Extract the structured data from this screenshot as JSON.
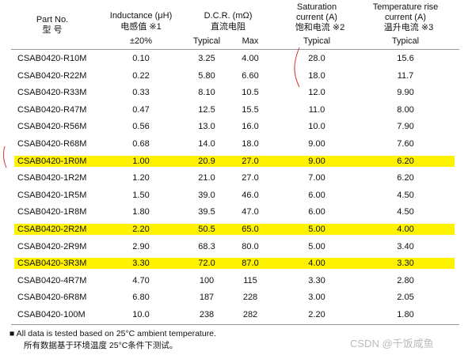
{
  "header": {
    "part_no": [
      "Part No.",
      "型 号"
    ],
    "inductance": [
      "Inductance (μH)",
      "电感值 ※1",
      "±20%"
    ],
    "dcr": [
      "D.C.R. (mΩ)",
      "直流电阻"
    ],
    "saturation": [
      "Saturation",
      "current (A)",
      "饱和电流 ※2"
    ],
    "temp_rise": [
      "Temperature rise",
      "current (A)",
      "温升电流 ※3"
    ],
    "subheaders": [
      "Typical",
      "Max",
      "Typical",
      "Typical"
    ]
  },
  "table": {
    "rows": [
      {
        "cells": [
          "CSAB0420-R10M",
          "0.10",
          "3.25",
          "4.00",
          "28.0",
          "15.6"
        ]
      },
      {
        "cells": [
          "CSAB0420-R22M",
          "0.22",
          "5.80",
          "6.60",
          "18.0",
          "11.7"
        ]
      },
      {
        "cells": [
          "CSAB0420-R33M",
          "0.33",
          "8.10",
          "10.5",
          "12.0",
          "9.90"
        ]
      },
      {
        "cells": [
          "CSAB0420-R47M",
          "0.47",
          "12.5",
          "15.5",
          "11.0",
          "8.00"
        ]
      },
      {
        "cells": [
          "CSAB0420-R56M",
          "0.56",
          "13.0",
          "16.0",
          "10.0",
          "7.90"
        ]
      },
      {
        "cells": [
          "CSAB0420-R68M",
          "0.68",
          "14.0",
          "18.0",
          "9.00",
          "7.60"
        ]
      },
      {
        "cells": [
          "CSAB0420-1R0M",
          "1.00",
          "20.9",
          "27.0",
          "9.00",
          "6.20"
        ],
        "highlight": true
      },
      {
        "cells": [
          "CSAB0420-1R2M",
          "1.20",
          "21.0",
          "27.0",
          "7.00",
          "6.20"
        ]
      },
      {
        "cells": [
          "CSAB0420-1R5M",
          "1.50",
          "39.0",
          "46.0",
          "6.00",
          "4.50"
        ]
      },
      {
        "cells": [
          "CSAB0420-1R8M",
          "1.80",
          "39.5",
          "47.0",
          "6.00",
          "4.50"
        ]
      },
      {
        "cells": [
          "CSAB0420-2R2M",
          "2.20",
          "50.5",
          "65.0",
          "5.00",
          "4.00"
        ],
        "highlight": true
      },
      {
        "cells": [
          "CSAB0420-2R9M",
          "2.90",
          "68.3",
          "80.0",
          "5.00",
          "3.40"
        ]
      },
      {
        "cells": [
          "CSAB0420-3R3M",
          "3.30",
          "72.0",
          "87.0",
          "4.00",
          "3.30"
        ],
        "highlight": true
      },
      {
        "cells": [
          "CSAB0420-4R7M",
          "4.70",
          "100",
          "115",
          "3.30",
          "2.80"
        ]
      },
      {
        "cells": [
          "CSAB0420-6R8M",
          "6.80",
          "187",
          "228",
          "3.00",
          "2.05"
        ]
      },
      {
        "cells": [
          "CSAB0420-100M",
          "10.0",
          "238",
          "282",
          "2.20",
          "1.80"
        ]
      }
    ]
  },
  "footnote": [
    "■  All data is tested based on 25°C  ambient temperature.",
    "所有数据基于环境温度 25°C条件下测试。"
  ],
  "watermark": "CSDN @千饭咸鱼"
}
